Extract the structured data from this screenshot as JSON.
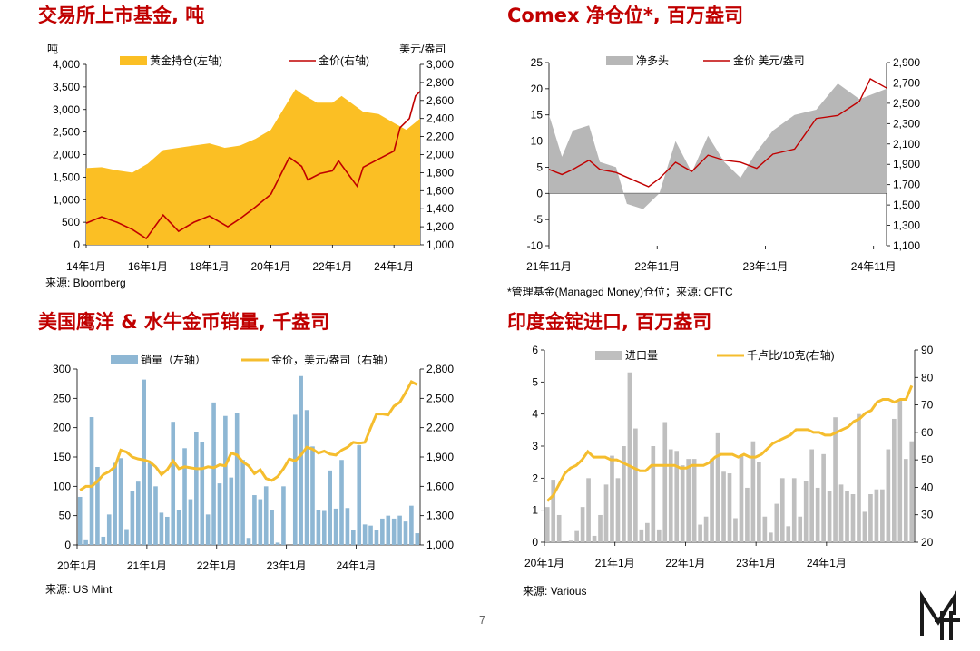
{
  "page_number": "7",
  "panels": {
    "gold_etf": {
      "title": "交易所上市基金, 吨",
      "source": "来源: Bloomberg"
    },
    "comex": {
      "title": "Comex 净仓位*, 百万盎司",
      "source": "*管理基金(Managed Money)仓位；来源: CFTC"
    },
    "us_mint": {
      "title": "美国鹰洋 & 水牛金币销量, 千盎司",
      "source": "来源: US Mint"
    },
    "india": {
      "title": "印度金锭进口, 百万盎司",
      "source": "来源: Various"
    }
  },
  "colors": {
    "title_red": "#c00000",
    "etf_gold": "#fbbf24",
    "price_red": "#c00000",
    "comex_gray": "#b7b7b7",
    "mint_blue": "#8eb7d4",
    "price_yellow": "#f5bd2e",
    "india_gray": "#bfbfbf"
  },
  "chart_data": [
    {
      "id": "gold_etf",
      "type": "area",
      "title": "交易所上市基金, 吨",
      "y_left_unit": "吨",
      "y_right_unit": "美元/盎司",
      "ylim_left": [
        0,
        4000
      ],
      "ylim_right": [
        1000,
        3000
      ],
      "x_range": [
        2014.0,
        2024.85
      ],
      "yticks_left": [
        "0",
        "500",
        "1,000",
        "1,500",
        "2,000",
        "2,500",
        "3,000",
        "3,500",
        "4,000"
      ],
      "yticks_right": [
        "1,000",
        "1,200",
        "1,400",
        "1,600",
        "1,800",
        "2,000",
        "2,200",
        "2,400",
        "2,600",
        "2,800",
        "3,000"
      ],
      "xticks": [
        {
          "x": 2014.0,
          "label": "14年1月"
        },
        {
          "x": 2016.0,
          "label": "16年1月"
        },
        {
          "x": 2018.0,
          "label": "18年1月"
        },
        {
          "x": 2020.0,
          "label": "20年1月"
        },
        {
          "x": 2022.0,
          "label": "22年1月"
        },
        {
          "x": 2024.0,
          "label": "24年1月"
        }
      ],
      "series": [
        {
          "name": "黄金持仓(左轴)",
          "kind": "area",
          "axis": "left",
          "x": [
            2014.0,
            2014.5,
            2015.0,
            2015.5,
            2016.0,
            2016.5,
            2017.0,
            2017.5,
            2018.0,
            2018.5,
            2019.0,
            2019.5,
            2020.0,
            2020.4,
            2020.8,
            2021.0,
            2021.5,
            2022.0,
            2022.3,
            2022.8,
            2023.0,
            2023.5,
            2024.0,
            2024.4,
            2024.85
          ],
          "y": [
            1700,
            1720,
            1650,
            1600,
            1800,
            2100,
            2150,
            2200,
            2250,
            2150,
            2200,
            2350,
            2550,
            3000,
            3450,
            3350,
            3150,
            3150,
            3300,
            3050,
            2950,
            2900,
            2700,
            2550,
            2800
          ]
        },
        {
          "name": "金价(右轴)",
          "kind": "line",
          "axis": "right",
          "x": [
            2014.0,
            2014.5,
            2015.0,
            2015.5,
            2015.95,
            2016.5,
            2017.0,
            2017.5,
            2018.0,
            2018.6,
            2019.0,
            2019.5,
            2020.0,
            2020.6,
            2021.0,
            2021.2,
            2021.6,
            2022.0,
            2022.2,
            2022.8,
            2023.0,
            2023.5,
            2024.0,
            2024.2,
            2024.5,
            2024.7,
            2024.85
          ],
          "y": [
            1240,
            1310,
            1250,
            1170,
            1070,
            1330,
            1150,
            1250,
            1320,
            1200,
            1290,
            1420,
            1560,
            1970,
            1870,
            1720,
            1790,
            1820,
            1930,
            1650,
            1860,
            1950,
            2040,
            2300,
            2400,
            2650,
            2700
          ]
        }
      ]
    },
    {
      "id": "comex",
      "type": "area",
      "title": "Comex 净仓位*, 百万盎司",
      "ylim_left": [
        -10,
        25
      ],
      "ylim_right": [
        1100,
        2900
      ],
      "x_range": [
        2021.83,
        2024.95
      ],
      "yticks_left": [
        "-10",
        "-5",
        "0",
        "5",
        "10",
        "15",
        "20",
        "25"
      ],
      "yticks_right": [
        "1,100",
        "1,300",
        "1,500",
        "1,700",
        "1,900",
        "2,100",
        "2,300",
        "2,500",
        "2,700",
        "2,900"
      ],
      "xticks": [
        {
          "x": 2021.83,
          "label": "21年11月"
        },
        {
          "x": 2022.83,
          "label": "22年11月"
        },
        {
          "x": 2023.83,
          "label": "23年11月"
        },
        {
          "x": 2024.83,
          "label": "24年11月"
        }
      ],
      "series": [
        {
          "name": "净多头",
          "kind": "area",
          "axis": "left",
          "x": [
            2021.83,
            2021.95,
            2022.05,
            2022.2,
            2022.3,
            2022.45,
            2022.55,
            2022.7,
            2022.85,
            2023.0,
            2023.15,
            2023.3,
            2023.45,
            2023.6,
            2023.75,
            2023.9,
            2024.1,
            2024.3,
            2024.5,
            2024.7,
            2024.95
          ],
          "y": [
            15,
            7,
            12,
            13,
            6,
            5,
            -2,
            -3,
            0,
            10,
            4,
            11,
            6,
            3,
            8,
            12,
            15,
            16,
            21,
            18,
            20
          ]
        },
        {
          "name": "金价 美元/盎司",
          "kind": "line",
          "axis": "right",
          "x": [
            2021.83,
            2021.95,
            2022.05,
            2022.2,
            2022.3,
            2022.45,
            2022.6,
            2022.75,
            2022.85,
            2023.0,
            2023.15,
            2023.3,
            2023.45,
            2023.6,
            2023.75,
            2023.9,
            2024.1,
            2024.3,
            2024.5,
            2024.7,
            2024.8,
            2024.95
          ],
          "y": [
            1850,
            1800,
            1850,
            1940,
            1850,
            1820,
            1750,
            1680,
            1760,
            1920,
            1830,
            1990,
            1940,
            1920,
            1860,
            2000,
            2050,
            2350,
            2380,
            2520,
            2740,
            2650
          ]
        }
      ]
    },
    {
      "id": "us_mint",
      "type": "bar",
      "title": "美国鹰洋 & 水牛金币销量, 千盎司",
      "ylim_left": [
        0,
        300
      ],
      "ylim_right": [
        1000,
        2800
      ],
      "yticks_left": [
        "0",
        "50",
        "100",
        "150",
        "200",
        "250",
        "300"
      ],
      "yticks_right": [
        "1,000",
        "1,300",
        "1,600",
        "1,900",
        "2,200",
        "2,500",
        "2,800"
      ],
      "xticks": [
        {
          "i": 0,
          "label": "20年1月"
        },
        {
          "i": 12,
          "label": "21年1月"
        },
        {
          "i": 24,
          "label": "22年1月"
        },
        {
          "i": 36,
          "label": "23年1月"
        },
        {
          "i": 48,
          "label": "24年1月"
        }
      ],
      "series": [
        {
          "name": "销量（左轴）",
          "kind": "bar",
          "axis": "left",
          "values": [
            82,
            8,
            218,
            133,
            14,
            52,
            140,
            148,
            27,
            92,
            108,
            282,
            140,
            100,
            55,
            48,
            210,
            60,
            165,
            78,
            193,
            175,
            52,
            243,
            105,
            220,
            115,
            225,
            145,
            12,
            85,
            78,
            100,
            60,
            4,
            100,
            0,
            222,
            288,
            230,
            168,
            60,
            58,
            127,
            62,
            145,
            63,
            25,
            170,
            35,
            33,
            25,
            45,
            50,
            45,
            50,
            40,
            67,
            20
          ]
        },
        {
          "name": "金价，美元/盎司（右轴）",
          "kind": "line",
          "axis": "right",
          "values": [
            1560,
            1600,
            1600,
            1650,
            1720,
            1750,
            1800,
            1970,
            1950,
            1900,
            1880,
            1870,
            1850,
            1800,
            1720,
            1770,
            1860,
            1780,
            1800,
            1790,
            1780,
            1780,
            1800,
            1790,
            1820,
            1810,
            1940,
            1920,
            1850,
            1810,
            1730,
            1770,
            1680,
            1660,
            1700,
            1780,
            1880,
            1860,
            1920,
            2000,
            1980,
            1940,
            1960,
            1930,
            1920,
            1970,
            2000,
            2050,
            2040,
            2050,
            2200,
            2340,
            2340,
            2330,
            2420,
            2460,
            2560,
            2670,
            2640
          ]
        }
      ]
    },
    {
      "id": "india",
      "type": "bar",
      "title": "印度金锭进口, 百万盎司",
      "ylim_left": [
        0,
        6
      ],
      "ylim_right": [
        20,
        90
      ],
      "yticks_left": [
        "0",
        "1",
        "2",
        "3",
        "4",
        "5",
        "6"
      ],
      "yticks_right": [
        "20",
        "30",
        "40",
        "50",
        "60",
        "70",
        "80",
        "90"
      ],
      "xticks": [
        {
          "i": 0,
          "label": "20年1月"
        },
        {
          "i": 12,
          "label": "21年1月"
        },
        {
          "i": 24,
          "label": "22年1月"
        },
        {
          "i": 36,
          "label": "23年1月"
        },
        {
          "i": 48,
          "label": "24年1月"
        }
      ],
      "series": [
        {
          "name": "进口量",
          "kind": "bar",
          "axis": "left",
          "values": [
            1.1,
            1.95,
            0.85,
            0,
            0.05,
            0.35,
            1.1,
            2.0,
            0.2,
            0.85,
            1.8,
            2.7,
            2.0,
            3.0,
            5.3,
            3.55,
            0.4,
            0.6,
            3.0,
            0.4,
            3.75,
            2.9,
            2.85,
            2.4,
            2.6,
            2.6,
            0.55,
            0.8,
            2.6,
            3.4,
            2.2,
            2.15,
            0.75,
            2.7,
            1.7,
            3.15,
            2.5,
            0.8,
            0.3,
            1.2,
            2.0,
            0.5,
            2.0,
            0.8,
            1.9,
            2.9,
            1.7,
            2.75,
            1.6,
            3.9,
            1.8,
            1.6,
            1.5,
            4.0,
            0.95,
            1.5,
            1.65,
            1.65,
            2.9,
            3.85,
            4.45,
            2.6,
            3.15
          ]
        },
        {
          "name": "千卢比/10克(右轴)",
          "kind": "line",
          "axis": "right",
          "values": [
            35,
            37,
            41,
            45,
            47,
            48,
            50,
            53,
            51,
            51,
            51,
            50,
            50,
            49,
            48,
            47,
            46,
            46,
            48,
            48,
            48,
            48,
            48,
            47,
            47,
            48,
            48,
            48,
            49,
            51,
            52,
            52,
            52,
            51,
            52,
            51,
            51,
            52,
            54,
            56,
            57,
            58,
            59,
            61,
            61,
            61,
            60,
            60,
            59,
            59,
            60,
            61,
            62,
            64,
            65,
            67,
            68,
            71,
            72,
            72,
            71,
            72,
            72,
            77
          ]
        }
      ]
    }
  ],
  "legends": {
    "gold_etf": [
      "黄金持仓(左轴)",
      "金价(右轴)"
    ],
    "comex": [
      "净多头",
      "金价 美元/盎司"
    ],
    "us_mint": [
      "销量（左轴）",
      "金价，美元/盎司（右轴）"
    ],
    "india": [
      "进口量",
      "千卢比/10克(右轴)"
    ]
  },
  "axis_units": {
    "gold_etf_left": "吨",
    "gold_etf_right": "美元/盎司"
  }
}
